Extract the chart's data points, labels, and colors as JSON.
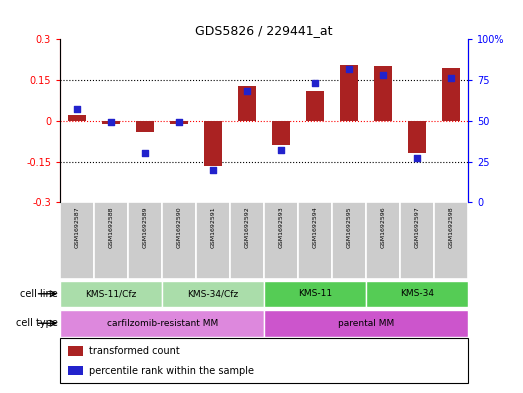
{
  "title": "GDS5826 / 229441_at",
  "samples": [
    "GSM1692587",
    "GSM1692588",
    "GSM1692589",
    "GSM1692590",
    "GSM1692591",
    "GSM1692592",
    "GSM1692593",
    "GSM1692594",
    "GSM1692595",
    "GSM1692596",
    "GSM1692597",
    "GSM1692598"
  ],
  "transformed_count": [
    0.02,
    -0.01,
    -0.04,
    -0.01,
    -0.165,
    0.13,
    -0.09,
    0.11,
    0.205,
    0.2,
    -0.12,
    0.195
  ],
  "percentile_rank": [
    57,
    49,
    30,
    49,
    20,
    68,
    32,
    73,
    82,
    78,
    27,
    76
  ],
  "ylim_left": [
    -0.3,
    0.3
  ],
  "ylim_right": [
    0,
    100
  ],
  "yticks_left": [
    -0.3,
    -0.15,
    0.0,
    0.15,
    0.3
  ],
  "yticks_right": [
    0,
    25,
    50,
    75,
    100
  ],
  "bar_color": "#aa2222",
  "dot_color": "#2222cc",
  "cell_line_groups": [
    {
      "label": "KMS-11/Cfz",
      "start": 0,
      "end": 3,
      "color": "#aaddaa"
    },
    {
      "label": "KMS-34/Cfz",
      "start": 3,
      "end": 6,
      "color": "#aaddaa"
    },
    {
      "label": "KMS-11",
      "start": 6,
      "end": 9,
      "color": "#55cc55"
    },
    {
      "label": "KMS-34",
      "start": 9,
      "end": 12,
      "color": "#55cc55"
    }
  ],
  "cell_type_groups": [
    {
      "label": "carfilzomib-resistant MM",
      "start": 0,
      "end": 6,
      "color": "#dd88dd"
    },
    {
      "label": "parental MM",
      "start": 6,
      "end": 12,
      "color": "#cc55cc"
    }
  ],
  "legend_items": [
    {
      "color": "#aa2222",
      "label": "transformed count"
    },
    {
      "color": "#2222cc",
      "label": "percentile rank within the sample"
    }
  ]
}
